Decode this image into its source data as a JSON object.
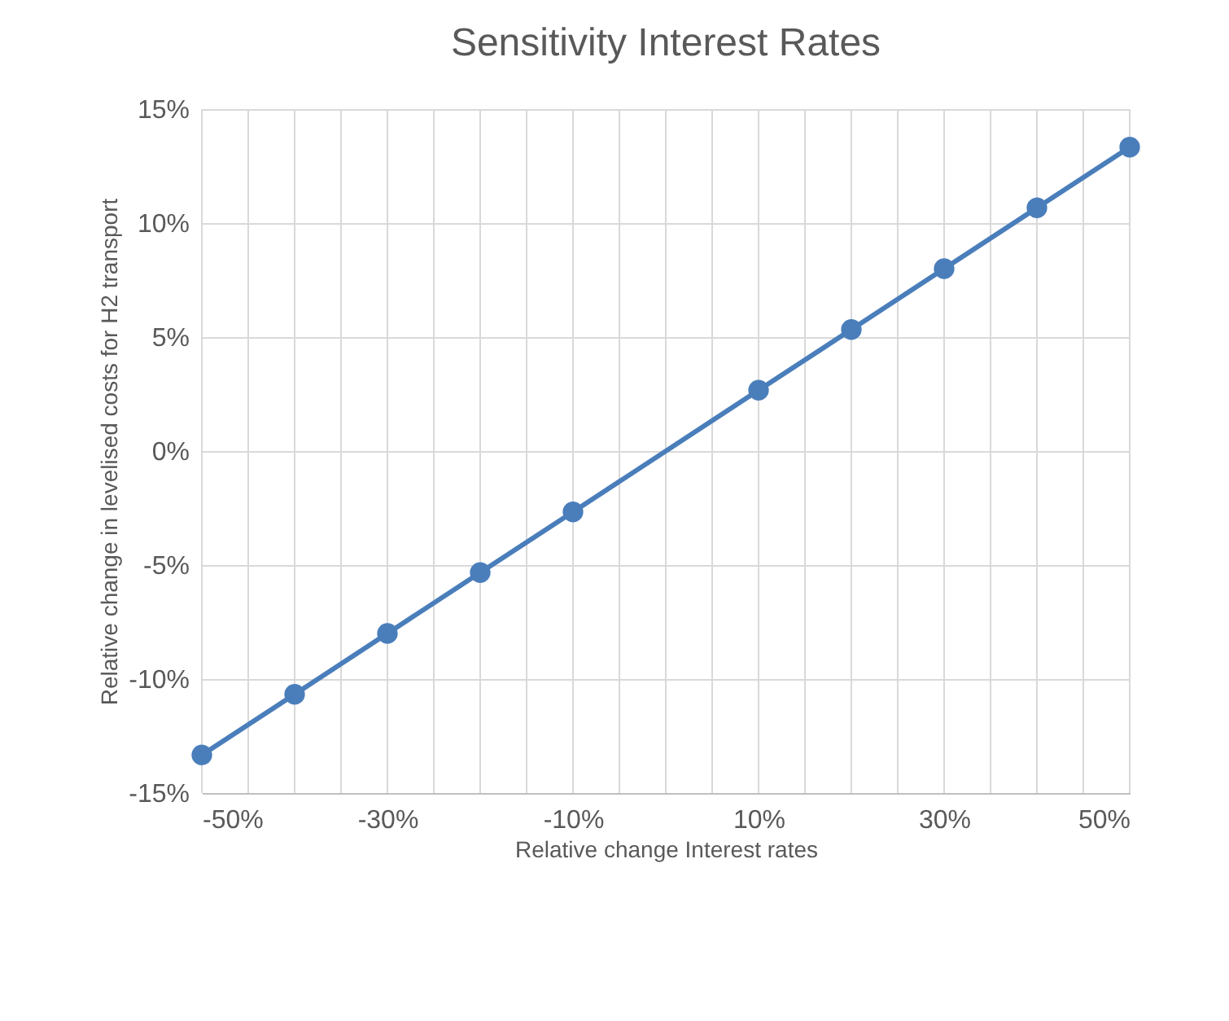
{
  "chart_data": {
    "type": "line",
    "title": "Sensitivity Interest Rates",
    "xlabel": "Relative change Interest rates",
    "ylabel": "Relative change in levelised costs for H2 transport",
    "x": [
      -50,
      -40,
      -30,
      -20,
      -10,
      10,
      20,
      30,
      40,
      50
    ],
    "series": [
      {
        "color": "#4a7ebb",
        "values": [
          -13.33,
          -10.67,
          -8.0,
          -5.33,
          -2.67,
          2.67,
          5.33,
          8.0,
          10.67,
          13.33
        ]
      }
    ],
    "xlim": [
      -50,
      50
    ],
    "ylim": [
      -15,
      15
    ],
    "xticks": [
      {
        "value": -50,
        "label": "-50%"
      },
      {
        "value": -45,
        "label": null
      },
      {
        "value": -40,
        "label": null
      },
      {
        "value": -35,
        "label": null
      },
      {
        "value": -30,
        "label": "-30%"
      },
      {
        "value": -25,
        "label": null
      },
      {
        "value": -20,
        "label": null
      },
      {
        "value": -15,
        "label": null
      },
      {
        "value": -10,
        "label": "-10%"
      },
      {
        "value": -5,
        "label": null
      },
      {
        "value": 0,
        "label": null
      },
      {
        "value": 5,
        "label": null
      },
      {
        "value": 10,
        "label": "10%"
      },
      {
        "value": 15,
        "label": null
      },
      {
        "value": 20,
        "label": null
      },
      {
        "value": 25,
        "label": null
      },
      {
        "value": 30,
        "label": "30%"
      },
      {
        "value": 35,
        "label": null
      },
      {
        "value": 40,
        "label": null
      },
      {
        "value": 45,
        "label": null
      },
      {
        "value": 50,
        "label": "50%"
      }
    ],
    "yticks": [
      {
        "value": -15,
        "label": "-15%"
      },
      {
        "value": -10,
        "label": "-10%"
      },
      {
        "value": -5,
        "label": "-5%"
      },
      {
        "value": 0,
        "label": "0%"
      },
      {
        "value": 5,
        "label": "5%"
      },
      {
        "value": 10,
        "label": "10%"
      },
      {
        "value": 15,
        "label": "15%"
      }
    ],
    "grid": true,
    "marker": "circle",
    "line_style": "solid"
  }
}
